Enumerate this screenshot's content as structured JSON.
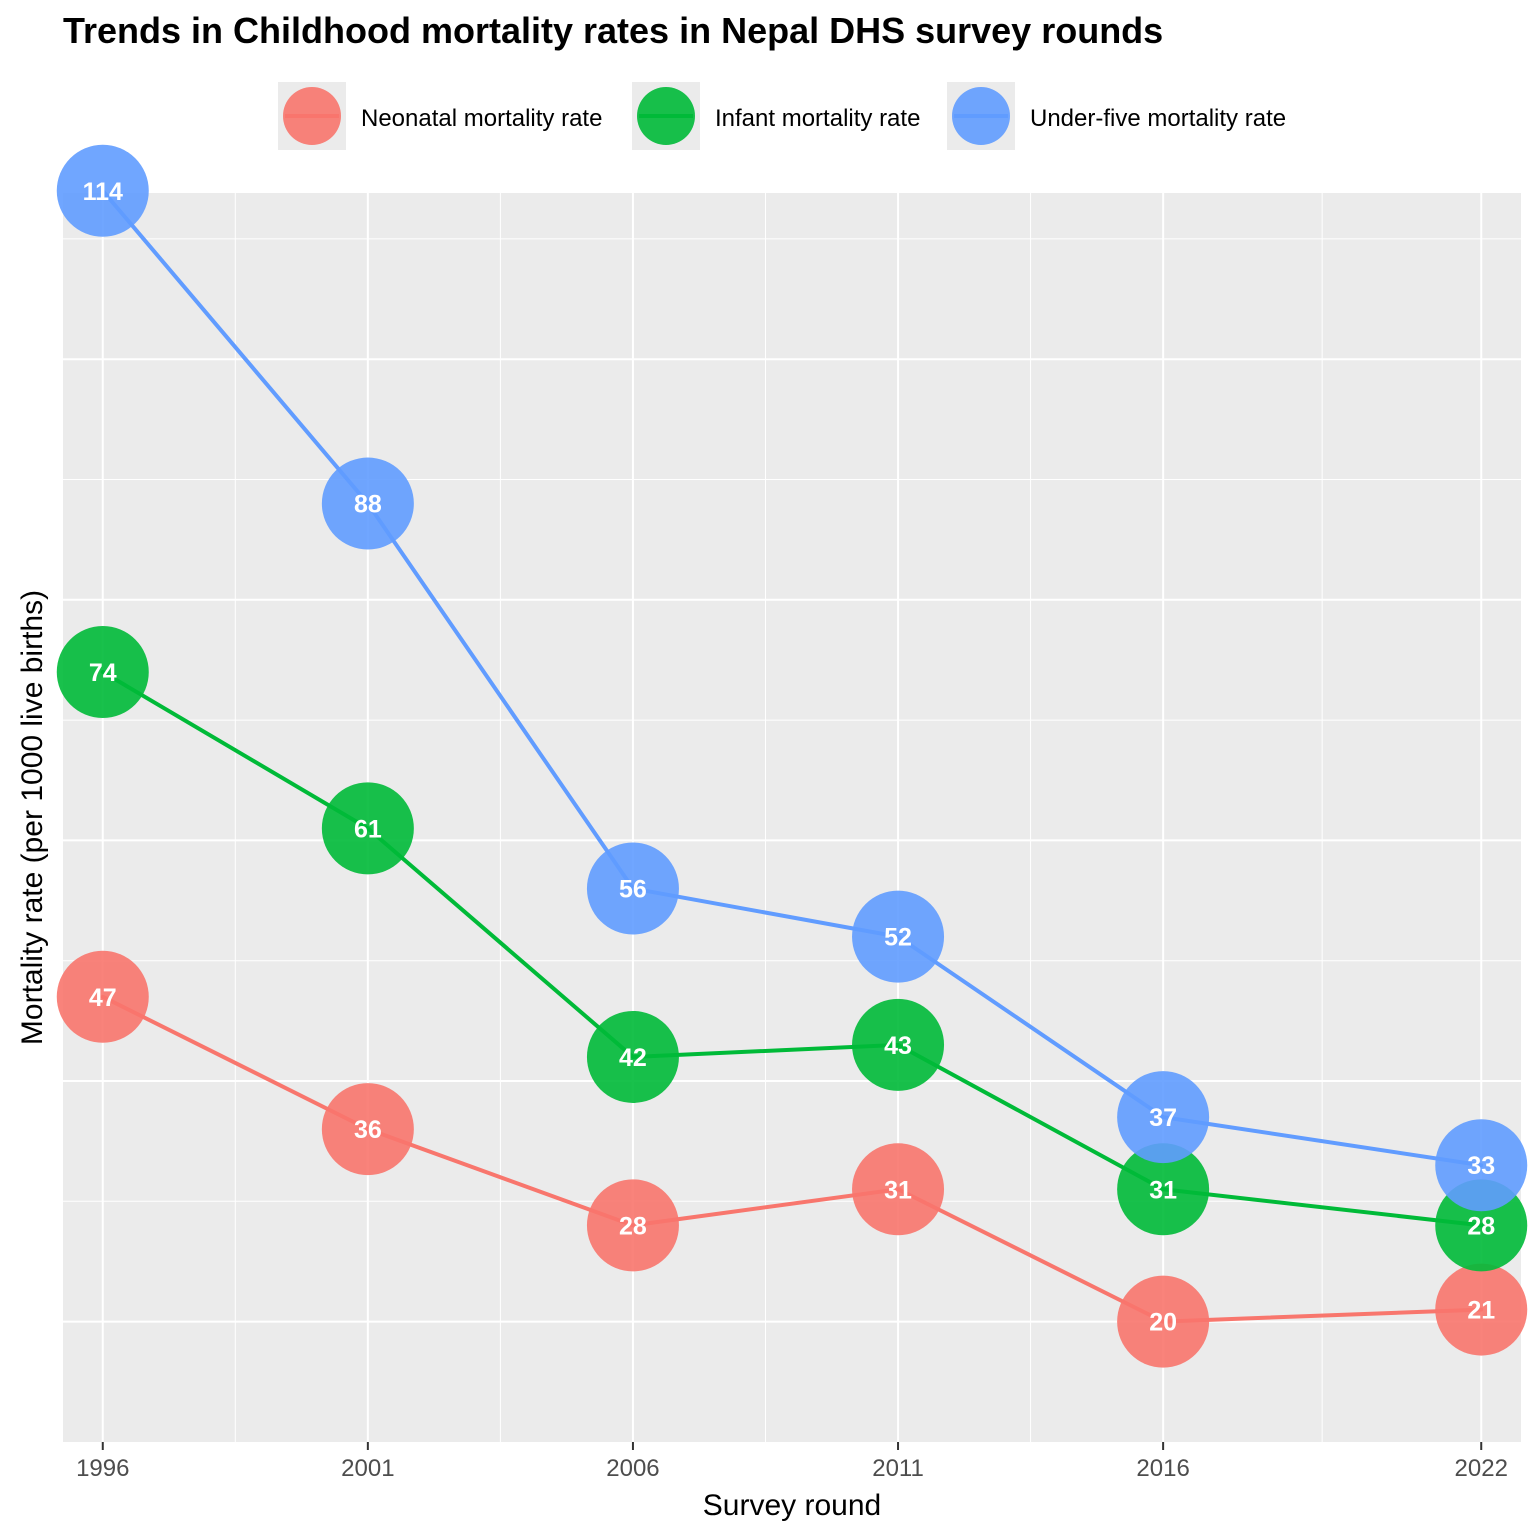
{
  "title": "Trends in Childhood mortality rates in Nepal DHS survey rounds",
  "chart_data": {
    "type": "line",
    "x": [
      "1996",
      "2001",
      "2006",
      "2011",
      "2016",
      "2022"
    ],
    "xlabel": "Survey round",
    "ylabel": "Mortality rate (per 1000 live births)",
    "ylim": [
      15,
      118
    ],
    "y_tick_labels_shown": false,
    "grid": true,
    "legend_position": "top",
    "series": [
      {
        "name": "Neonatal mortality rate",
        "color": "#F8766D",
        "values": [
          47,
          36,
          28,
          31,
          20,
          21
        ]
      },
      {
        "name": "Infant mortality rate",
        "color": "#00BA38",
        "values": [
          74,
          61,
          42,
          43,
          31,
          28
        ]
      },
      {
        "name": "Under-five mortality rate",
        "color": "#619CFF",
        "values": [
          114,
          88,
          56,
          52,
          37,
          33
        ]
      }
    ]
  }
}
